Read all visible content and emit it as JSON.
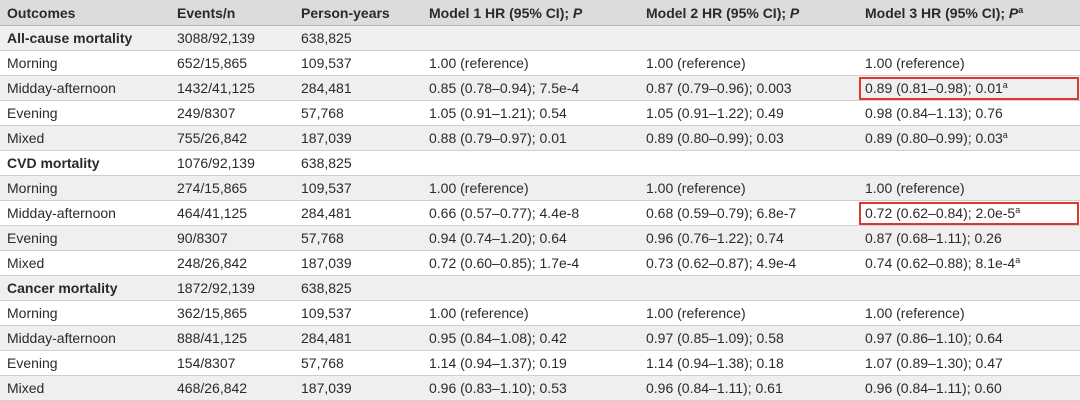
{
  "table": {
    "headers": [
      {
        "text": "Outcomes",
        "italic": "",
        "sup": ""
      },
      {
        "text": "Events/n",
        "italic": "",
        "sup": ""
      },
      {
        "text": "Person-years",
        "italic": "",
        "sup": ""
      },
      {
        "text": "Model 1 HR (95% CI); ",
        "italic": "P",
        "sup": ""
      },
      {
        "text": "Model 2 HR (95% CI); ",
        "italic": "P",
        "sup": ""
      },
      {
        "text": "Model 3 HR (95% CI); ",
        "italic": "P",
        "sup": "a"
      }
    ],
    "rows": [
      {
        "type": "section",
        "cells": [
          "All-cause mortality",
          "3088/92,139",
          "638,825",
          "",
          "",
          ""
        ]
      },
      {
        "type": "data",
        "cells": [
          "Morning",
          "652/15,865",
          "109,537",
          "1.00 (reference)",
          "1.00 (reference)",
          "1.00 (reference)"
        ]
      },
      {
        "type": "data",
        "cells": [
          "Midday-afternoon",
          "1432/41,125",
          "284,481",
          "0.85 (0.78–0.94); 7.5e-4",
          "0.87 (0.79–0.96); 0.003",
          "0.89 (0.81–0.98); 0.01"
        ],
        "sup5": "a",
        "highlight5": true
      },
      {
        "type": "data",
        "cells": [
          "Evening",
          "249/8307",
          "57,768",
          "1.05 (0.91–1.21); 0.54",
          "1.05 (0.91–1.22); 0.49",
          "0.98 (0.84–1.13); 0.76"
        ]
      },
      {
        "type": "data",
        "cells": [
          "Mixed",
          "755/26,842",
          "187,039",
          "0.88 (0.79–0.97); 0.01",
          "0.89 (0.80–0.99); 0.03",
          "0.89 (0.80–0.99); 0.03"
        ],
        "sup5": "a"
      },
      {
        "type": "section",
        "cells": [
          "CVD mortality",
          "1076/92,139",
          "638,825",
          "",
          "",
          ""
        ]
      },
      {
        "type": "data",
        "cells": [
          "Morning",
          "274/15,865",
          "109,537",
          "1.00 (reference)",
          "1.00 (reference)",
          "1.00 (reference)"
        ]
      },
      {
        "type": "data",
        "cells": [
          "Midday-afternoon",
          "464/41,125",
          "284,481",
          "0.66 (0.57–0.77); 4.4e-8",
          "0.68 (0.59–0.79); 6.8e-7",
          "0.72 (0.62–0.84); 2.0e-5"
        ],
        "sup5": "a",
        "highlight5": true
      },
      {
        "type": "data",
        "cells": [
          "Evening",
          "90/8307",
          "57,768",
          "0.94 (0.74–1.20); 0.64",
          "0.96 (0.76–1.22); 0.74",
          "0.87 (0.68–1.11); 0.26"
        ]
      },
      {
        "type": "data",
        "cells": [
          "Mixed",
          "248/26,842",
          "187,039",
          "0.72 (0.60–0.85); 1.7e-4",
          "0.73 (0.62–0.87); 4.9e-4",
          "0.74 (0.62–0.88); 8.1e-4"
        ],
        "sup5": "a"
      },
      {
        "type": "section",
        "cells": [
          "Cancer mortality",
          "1872/92,139",
          "638,825",
          "",
          "",
          ""
        ]
      },
      {
        "type": "data",
        "cells": [
          "Morning",
          "362/15,865",
          "109,537",
          "1.00 (reference)",
          "1.00 (reference)",
          "1.00 (reference)"
        ]
      },
      {
        "type": "data",
        "cells": [
          "Midday-afternoon",
          "888/41,125",
          "284,481",
          "0.95 (0.84–1.08); 0.42",
          "0.97 (0.85–1.09); 0.58",
          "0.97 (0.86–1.10); 0.64"
        ]
      },
      {
        "type": "data",
        "cells": [
          "Evening",
          "154/8307",
          "57,768",
          "1.14 (0.94–1.37); 0.19",
          "1.14 (0.94–1.38); 0.18",
          "1.07 (0.89–1.30); 0.47"
        ]
      },
      {
        "type": "data",
        "cells": [
          "Mixed",
          "468/26,842",
          "187,039",
          "0.96 (0.83–1.10); 0.53",
          "0.96 (0.84–1.11); 0.61",
          "0.96 (0.84–1.11); 0.60"
        ]
      }
    ]
  },
  "colors": {
    "header_bg": "#dcdcdc",
    "row_shade": "#efefef",
    "highlight": "#e0392b"
  }
}
